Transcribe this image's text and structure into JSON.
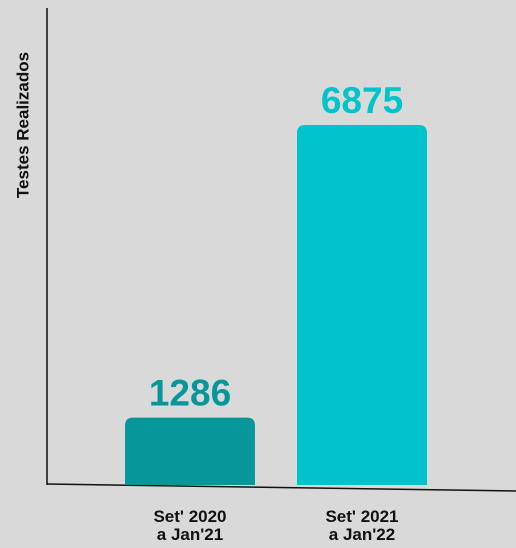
{
  "chart_data": {
    "type": "bar",
    "y_label": "Testes Realizados",
    "categories": [
      "Set' 2020\na Jan'21",
      "Set' 2021\na Jan'22"
    ],
    "values": [
      1286,
      6875
    ],
    "colors": [
      "#07979a",
      "#00c3cc"
    ],
    "ylim": [
      0,
      9070
    ],
    "grid": false
  }
}
